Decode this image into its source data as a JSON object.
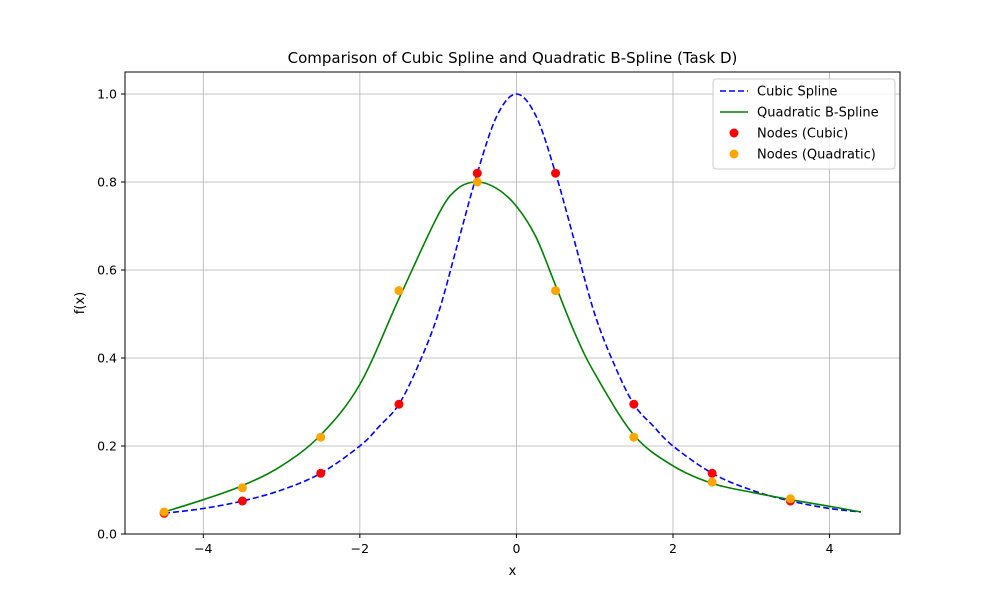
{
  "chart_data": {
    "type": "line",
    "title": "Comparison of Cubic Spline and Quadratic B-Spline (Task D)",
    "xlabel": "x",
    "ylabel": "f(x)",
    "xlim": [
      -5.0,
      4.9
    ],
    "ylim": [
      0.0,
      1.05
    ],
    "xticks": [
      -4,
      -2,
      0,
      2,
      4
    ],
    "xtick_labels": [
      "−4",
      "−2",
      "0",
      "2",
      "4"
    ],
    "yticks": [
      0.0,
      0.2,
      0.4,
      0.6,
      0.8,
      1.0
    ],
    "ytick_labels": [
      "0.0",
      "0.2",
      "0.4",
      "0.6",
      "0.8",
      "1.0"
    ],
    "grid": true,
    "legend_position": "top-right",
    "series": [
      {
        "name": "Cubic Spline",
        "kind": "line",
        "style": "dashed",
        "color": "#0000ff",
        "x": [
          -4.5,
          -4.0,
          -3.5,
          -3.0,
          -2.5,
          -2.0,
          -1.75,
          -1.5,
          -1.25,
          -1.0,
          -0.75,
          -0.5,
          -0.25,
          0.0,
          0.25,
          0.5,
          0.75,
          1.0,
          1.25,
          1.5,
          1.75,
          2.0,
          2.5,
          3.0,
          3.5,
          4.0,
          4.4
        ],
        "y": [
          0.047,
          0.058,
          0.075,
          0.1,
          0.138,
          0.2,
          0.245,
          0.295,
          0.385,
          0.5,
          0.66,
          0.82,
          0.95,
          1.0,
          0.95,
          0.82,
          0.66,
          0.5,
          0.385,
          0.295,
          0.245,
          0.2,
          0.138,
          0.1,
          0.075,
          0.058,
          0.05
        ]
      },
      {
        "name": "Quadratic B-Spline",
        "kind": "line",
        "style": "solid",
        "color": "#008000",
        "x": [
          -4.5,
          -4.0,
          -3.5,
          -3.0,
          -2.5,
          -2.0,
          -1.5,
          -1.0,
          -0.75,
          -0.5,
          -0.25,
          0.0,
          0.25,
          0.5,
          0.75,
          1.0,
          1.5,
          2.0,
          2.5,
          3.0,
          3.5,
          4.0,
          4.4
        ],
        "y": [
          0.05,
          0.078,
          0.11,
          0.155,
          0.225,
          0.34,
          0.535,
          0.725,
          0.785,
          0.8,
          0.785,
          0.745,
          0.675,
          0.565,
          0.455,
          0.365,
          0.225,
          0.155,
          0.115,
          0.095,
          0.078,
          0.063,
          0.05
        ]
      },
      {
        "name": "Nodes (Cubic)",
        "kind": "scatter",
        "color": "#ff0000",
        "x": [
          -4.5,
          -3.5,
          -2.5,
          -1.5,
          -0.5,
          0.5,
          1.5,
          2.5,
          3.5
        ],
        "y": [
          0.047,
          0.075,
          0.138,
          0.295,
          0.82,
          0.82,
          0.295,
          0.138,
          0.075
        ]
      },
      {
        "name": "Nodes (Quadratic)",
        "kind": "scatter",
        "color": "#ffa500",
        "x": [
          -4.5,
          -3.5,
          -2.5,
          -1.5,
          -0.5,
          0.5,
          1.5,
          2.5,
          3.5
        ],
        "y": [
          0.05,
          0.105,
          0.22,
          0.553,
          0.8,
          0.553,
          0.22,
          0.118,
          0.08
        ]
      }
    ]
  }
}
